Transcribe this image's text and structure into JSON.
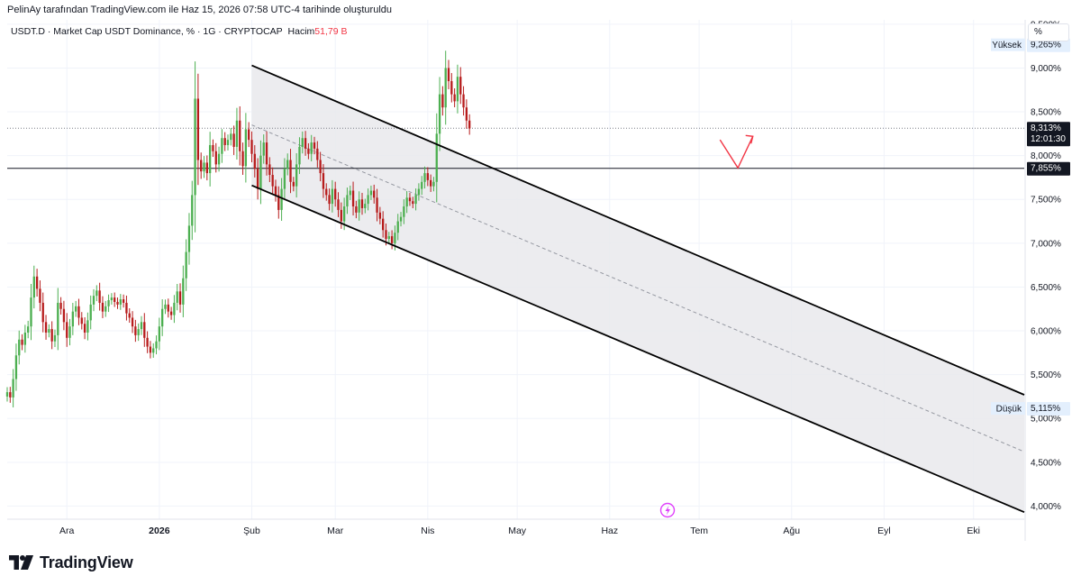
{
  "header": {
    "text": "PelinAy tarafından TradingView.com ile Haz 15, 2026 07:58 UTC-4 tarihinde oluşturuldu"
  },
  "legend": {
    "symbol": "USDT.D · Market Cap USDT Dominance, % · 1G · CRYPTOCAP",
    "volume_label": "Hacim",
    "volume_value": "51,79 B"
  },
  "scale_button": "%",
  "footer": {
    "brand": "TradingView"
  },
  "colors": {
    "up": "#26a69a",
    "up_candle": "#4caf50",
    "down": "#ef5350",
    "down_candle": "#b71c1c",
    "channel": "#000000",
    "grid": "#f0f3fa",
    "arrow": "#f23645"
  },
  "chart_data": {
    "type": "candlestick",
    "ylim": [
      3.85,
      9.55
    ],
    "y_ticks": [
      "9,500%",
      "9,000%",
      "8,500%",
      "8,000%",
      "7,500%",
      "7,000%",
      "6,500%",
      "6,000%",
      "5,500%",
      "5,000%",
      "4,500%",
      "4,000%"
    ],
    "y_tick_values": [
      9.5,
      9.0,
      8.5,
      8.0,
      7.5,
      7.0,
      6.5,
      6.0,
      5.5,
      5.0,
      4.5,
      4.0
    ],
    "x_ticks": [
      {
        "label": "Ara",
        "day": 0
      },
      {
        "label": "2026",
        "day": 31
      },
      {
        "label": "Şub",
        "day": 62
      },
      {
        "label": "Mar",
        "day": 90
      },
      {
        "label": "Nis",
        "day": 121
      },
      {
        "label": "May",
        "day": 151
      },
      {
        "label": "Haz",
        "day": 182
      },
      {
        "label": "Tem",
        "day": 212
      },
      {
        "label": "Ağu",
        "day": 243
      },
      {
        "label": "Eyl",
        "day": 274
      },
      {
        "label": "Eki",
        "day": 304
      }
    ],
    "x_first_day": -20,
    "x_last_day": 321,
    "high": {
      "label": "Yüksek",
      "value": "9,265%",
      "y": 9.265
    },
    "low": {
      "label": "Düşük",
      "value": "5,115%",
      "y": 5.115
    },
    "last": {
      "value": "8,313%",
      "countdown": "12:01:30",
      "y": 8.313
    },
    "hline": {
      "value": "7,855%",
      "y": 7.855
    },
    "channel": {
      "upper": [
        {
          "day": 62,
          "y": 9.03
        },
        {
          "day": 321,
          "y": 5.27
        }
      ],
      "lower": [
        {
          "day": 62,
          "y": 7.66
        },
        {
          "day": 321,
          "y": 3.93
        }
      ],
      "mid": [
        {
          "day": 62,
          "y": 8.35
        },
        {
          "day": 321,
          "y": 4.62
        }
      ]
    },
    "arrow": [
      {
        "day": 219,
        "y": 8.18
      },
      {
        "day": 225,
        "y": 7.86
      },
      {
        "day": 230,
        "y": 8.22
      }
    ],
    "closes": [
      5.3,
      5.24,
      5.45,
      5.72,
      5.9,
      5.84,
      5.98,
      6.05,
      6.38,
      6.62,
      6.48,
      6.32,
      6.1,
      5.98,
      6.02,
      5.88,
      5.95,
      6.32,
      6.25,
      6.1,
      5.92,
      6.05,
      6.22,
      6.28,
      6.15,
      6.08,
      5.98,
      6.12,
      6.3,
      6.4,
      6.46,
      6.32,
      6.22,
      6.28,
      6.35,
      6.38,
      6.33,
      6.3,
      6.36,
      6.32,
      6.2,
      6.15,
      6.05,
      5.95,
      6.02,
      6.1,
      5.92,
      5.82,
      5.75,
      5.8,
      5.88,
      6.05,
      6.25,
      6.3,
      6.22,
      6.18,
      6.32,
      6.45,
      6.3,
      6.6,
      6.9,
      7.2,
      7.55,
      8.65,
      7.95,
      7.82,
      7.92,
      7.8,
      8.12,
      8.05,
      7.9,
      8.02,
      8.2,
      8.12,
      8.18,
      8.25,
      8.1,
      8.4,
      8.05,
      7.88,
      8.3,
      8.18,
      8.02,
      7.85,
      7.62,
      8.0,
      8.15,
      7.9,
      7.78,
      7.65,
      7.55,
      7.38,
      7.62,
      7.85,
      7.95,
      7.7,
      7.65,
      7.9,
      8.1,
      8.2,
      8.08,
      8.02,
      8.15,
      8.08,
      7.95,
      7.8,
      7.62,
      7.55,
      7.45,
      7.62,
      7.5,
      7.38,
      7.25,
      7.42,
      7.55,
      7.6,
      7.42,
      7.35,
      7.5,
      7.4,
      7.45,
      7.55,
      7.6,
      7.52,
      7.35,
      7.28,
      7.15,
      7.05,
      7.08,
      7.0,
      7.12,
      7.25,
      7.3,
      7.42,
      7.52,
      7.48,
      7.45,
      7.55,
      7.62,
      7.7,
      7.8,
      7.72,
      7.65,
      7.7,
      8.25,
      8.7,
      8.55,
      9.0,
      8.85,
      8.7,
      8.62,
      8.9,
      8.7,
      8.55,
      8.4,
      8.31
    ]
  }
}
